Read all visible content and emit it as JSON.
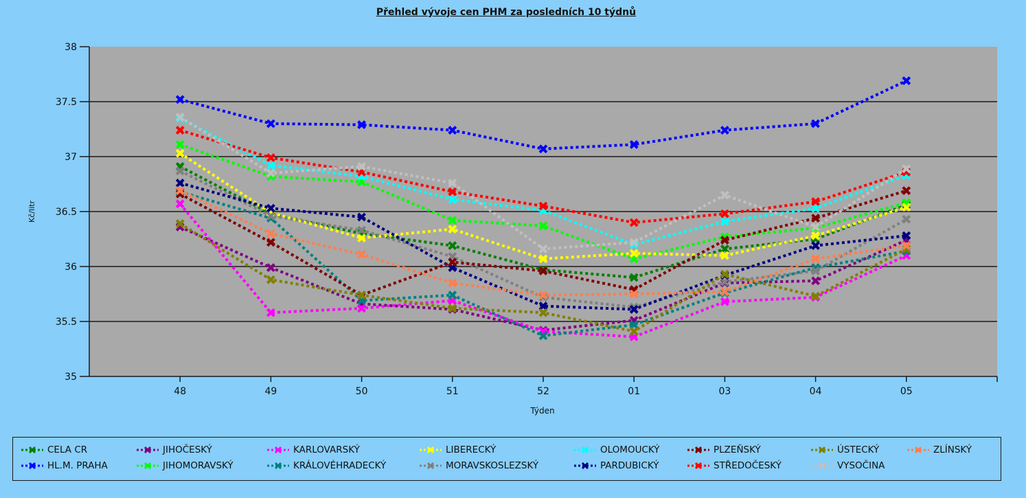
{
  "chart_data": {
    "type": "line",
    "title": "Přehled vývoje cen PHM za posledních 10 týdnů",
    "xlabel": "Týden",
    "ylabel": "Kč/litr",
    "ylim": [
      35,
      38
    ],
    "yticks": [
      "35",
      "35.5",
      "36",
      "36.5",
      "37",
      "37.5",
      "38"
    ],
    "grid": true,
    "legend_position": "bottom",
    "categories": [
      "48",
      "49",
      "50",
      "51",
      "52",
      "01",
      "03",
      "04",
      "05"
    ],
    "series": [
      {
        "name": "CELA CR",
        "color": "#008000",
        "values": [
          36.91,
          36.48,
          36.3,
          36.19,
          35.97,
          35.9,
          36.16,
          36.25,
          36.56
        ]
      },
      {
        "name": "HL.M. PRAHA",
        "color": "#0000ff",
        "values": [
          37.52,
          37.3,
          37.29,
          37.24,
          37.07,
          37.11,
          37.24,
          37.3,
          37.69
        ]
      },
      {
        "name": "JIHOČESKÝ",
        "color": "#800080",
        "values": [
          36.36,
          35.99,
          35.66,
          35.61,
          35.42,
          35.51,
          35.85,
          35.87,
          36.24
        ]
      },
      {
        "name": "JIHOMORAVSKÝ",
        "color": "#00ff00",
        "values": [
          37.11,
          36.82,
          36.77,
          36.42,
          36.37,
          36.07,
          36.27,
          36.35,
          36.58
        ]
      },
      {
        "name": "KARLOVARSKÝ",
        "color": "#ff00ff",
        "values": [
          36.57,
          35.58,
          35.62,
          35.69,
          35.41,
          35.36,
          35.68,
          35.72,
          36.1
        ]
      },
      {
        "name": "KRÁLOVÉHRADECKÝ",
        "color": "#008080",
        "values": [
          36.68,
          36.44,
          35.69,
          35.74,
          35.37,
          35.47,
          35.76,
          35.99,
          36.14
        ]
      },
      {
        "name": "LIBERECKÝ",
        "color": "#ffff00",
        "values": [
          37.03,
          36.49,
          36.26,
          36.34,
          36.07,
          36.12,
          36.1,
          36.28,
          36.54
        ]
      },
      {
        "name": "MORAVSKOSLEZSKÝ",
        "color": "#808080",
        "values": [
          36.87,
          36.46,
          36.33,
          36.09,
          35.72,
          35.63,
          35.86,
          35.96,
          36.43
        ]
      },
      {
        "name": "OLOMOUCKÝ",
        "color": "#00ffff",
        "values": [
          37.35,
          36.92,
          36.82,
          36.61,
          36.51,
          36.2,
          36.41,
          36.53,
          36.83
        ]
      },
      {
        "name": "PARDUBICKÝ",
        "color": "#000080",
        "values": [
          36.76,
          36.53,
          36.45,
          35.99,
          35.64,
          35.61,
          35.92,
          36.19,
          36.28
        ]
      },
      {
        "name": "PLZEŇSKÝ",
        "color": "#800000",
        "values": [
          36.66,
          36.22,
          35.74,
          36.04,
          35.96,
          35.79,
          36.24,
          36.44,
          36.69
        ]
      },
      {
        "name": "STŘEDOČESKÝ",
        "color": "#ff0000",
        "values": [
          37.24,
          36.99,
          36.86,
          36.68,
          36.55,
          36.4,
          36.48,
          36.59,
          36.86
        ]
      },
      {
        "name": "ÚSTECKÝ",
        "color": "#808000",
        "values": [
          36.39,
          35.88,
          35.74,
          35.62,
          35.58,
          35.41,
          35.93,
          35.73,
          36.16
        ]
      },
      {
        "name": "VYSOČINA",
        "color": "#c0c0c0",
        "values": [
          37.36,
          36.85,
          36.91,
          36.76,
          36.16,
          36.22,
          36.65,
          36.36,
          36.89
        ]
      },
      {
        "name": "ZLÍNSKÝ",
        "color": "#ff7f50",
        "values": [
          36.69,
          36.3,
          36.11,
          35.85,
          35.74,
          35.75,
          35.77,
          36.07,
          36.19
        ]
      }
    ]
  },
  "legend": {
    "row1": [
      "CELA CR",
      "JIHOČESKÝ",
      "KARLOVARSKÝ",
      "LIBERECKÝ",
      "OLOMOUCKÝ",
      "PLZEŇSKÝ",
      "ÚSTECKÝ",
      "ZLÍNSKÝ"
    ],
    "row2": [
      "HL.M. PRAHA",
      "JIHOMORAVSKÝ",
      "KRÁLOVÉHRADECKÝ",
      "MORAVSKOSLEZSKÝ",
      "PARDUBICKÝ",
      "STŘEDOČESKÝ",
      "VYSOČINA"
    ]
  }
}
